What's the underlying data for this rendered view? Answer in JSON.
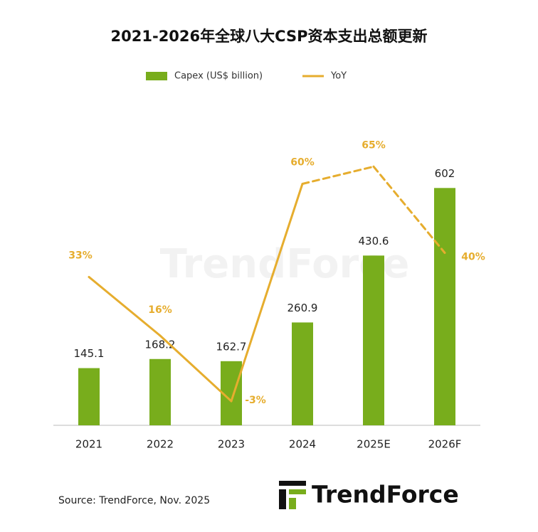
{
  "chart_data": {
    "type": "bar",
    "title": "2021-2026年全球八大CSP资本支出总额更新",
    "categories": [
      "2021",
      "2022",
      "2023",
      "2024",
      "2025E",
      "2026F"
    ],
    "series": [
      {
        "name": "Capex (US$ billion)",
        "type": "bar",
        "color": "#78ad1c",
        "values": [
          145.1,
          168.2,
          162.7,
          260.9,
          430.6,
          602
        ]
      },
      {
        "name": "YoY",
        "type": "line",
        "axis": "y2",
        "color": "#e6ad2e",
        "values": [
          33,
          16,
          -3,
          60,
          65,
          40
        ],
        "value_labels": [
          "33%",
          "16%",
          "-3%",
          "60%",
          "65%",
          "40%"
        ],
        "dashed_from": 3
      }
    ],
    "ylim": [
      0,
      700
    ],
    "y2lim": [
      -10,
      70
    ],
    "legend": "top",
    "source": "Source: TrendForce, Nov. 2025",
    "brand": "TrendForce"
  }
}
